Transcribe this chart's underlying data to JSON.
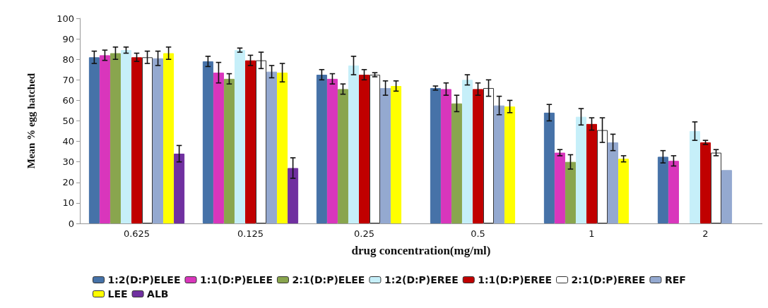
{
  "chart_data": {
    "type": "bar",
    "xlabel": "drug concentration(mg/ml)",
    "ylabel": "Mean % egg hatched",
    "categories": [
      "0.625",
      "0.125",
      "0.25",
      "0.5",
      "1",
      "2"
    ],
    "ylim": [
      0,
      100
    ],
    "yticks": [
      0,
      10,
      20,
      30,
      40,
      50,
      60,
      70,
      80,
      90,
      100
    ],
    "grid": false,
    "legend": "bottom",
    "series": [
      {
        "name": "1:2(D:P)ELEE",
        "color": "#4672a8",
        "values": [
          81,
          79,
          72.5,
          66,
          54,
          32.5
        ],
        "errors": [
          3,
          2.5,
          2.5,
          1,
          4,
          3
        ]
      },
      {
        "name": "1:1(D:P)ELEE",
        "color": "#d936bc",
        "values": [
          82,
          73.5,
          70.5,
          65.5,
          34.5,
          30.5
        ],
        "errors": [
          2.5,
          5,
          2.5,
          3,
          1.5,
          2.5
        ]
      },
      {
        "name": "2:1(D:P)ELEE",
        "color": "#89a54e",
        "values": [
          83,
          70.5,
          65.5,
          58.5,
          30,
          null
        ],
        "errors": [
          3,
          2.5,
          2.5,
          4,
          3.5,
          null
        ]
      },
      {
        "name": "1:2(D:P)EREE",
        "color": "#c6eff9",
        "values": [
          84.5,
          84.5,
          77,
          70,
          52,
          45
        ],
        "errors": [
          1.5,
          1,
          4.5,
          2.5,
          4,
          4.5
        ]
      },
      {
        "name": "1:1(D:P)EREE",
        "color": "#c00000",
        "values": [
          81,
          79.5,
          72.5,
          65.5,
          48.5,
          39.5
        ],
        "errors": [
          2,
          2.5,
          2.5,
          3,
          3,
          1
        ]
      },
      {
        "name": "2:1(D:P)EREE",
        "color": "#ffffff",
        "values": [
          81,
          79.5,
          72.5,
          66,
          45.5,
          34.5
        ],
        "errors": [
          3,
          4,
          1,
          4,
          6,
          1.5
        ]
      },
      {
        "name": "REF",
        "color": "#94a9d0",
        "values": [
          80.5,
          74,
          66,
          57.5,
          39.5,
          26
        ],
        "errors": [
          3.5,
          3,
          3.5,
          4.5,
          4,
          null
        ]
      },
      {
        "name": "LEE",
        "color": "#ffff00",
        "values": [
          83,
          73.5,
          67,
          57,
          31.5,
          null
        ],
        "errors": [
          3,
          4.5,
          2.5,
          3,
          1.5,
          null
        ]
      },
      {
        "name": "ALB",
        "color": "#7030a0",
        "values": [
          34,
          27,
          null,
          null,
          null,
          null
        ],
        "errors": [
          4,
          5,
          null,
          null,
          null,
          null
        ]
      }
    ]
  }
}
